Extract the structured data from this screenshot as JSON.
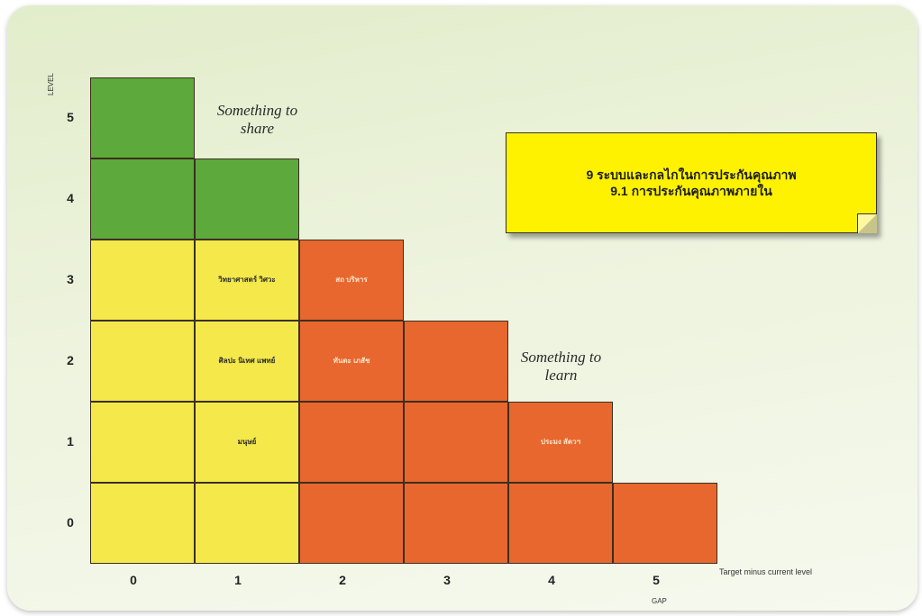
{
  "diagram": {
    "y_axis": {
      "label": "LEVEL",
      "ticks": [
        "5",
        "4",
        "3",
        "2",
        "1",
        "0"
      ]
    },
    "x_axis": {
      "label": "Target minus current level",
      "sub_label": "GAP",
      "ticks": [
        "0",
        "1",
        "2",
        "3",
        "4",
        "5"
      ]
    },
    "annotations": {
      "share": "Something to share",
      "learn": "Something to learn"
    },
    "note": {
      "line1": "9 ระบบและกลไกในการประกันคุณภาพ",
      "line2": "9.1 การประกันคุณภาพภายใน"
    },
    "colors": {
      "share": "#5da93c",
      "neutral": "#f4e84a",
      "learn": "#e8672f",
      "note": "#fff200"
    },
    "cells": [
      {
        "gap": 0,
        "level": 5,
        "zone": "green"
      },
      {
        "gap": 0,
        "level": 4,
        "zone": "green"
      },
      {
        "gap": 1,
        "level": 4,
        "zone": "green"
      },
      {
        "gap": 0,
        "level": 3,
        "zone": "yellow"
      },
      {
        "gap": 0,
        "level": 2,
        "zone": "yellow"
      },
      {
        "gap": 0,
        "level": 1,
        "zone": "yellow"
      },
      {
        "gap": 0,
        "level": 0,
        "zone": "yellow"
      },
      {
        "gap": 1,
        "level": 3,
        "zone": "yellow"
      },
      {
        "gap": 1,
        "level": 2,
        "zone": "yellow"
      },
      {
        "gap": 1,
        "level": 1,
        "zone": "yellow"
      },
      {
        "gap": 1,
        "level": 0,
        "zone": "yellow"
      },
      {
        "gap": 2,
        "level": 3,
        "zone": "orange"
      },
      {
        "gap": 2,
        "level": 2,
        "zone": "orange"
      },
      {
        "gap": 2,
        "level": 1,
        "zone": "orange"
      },
      {
        "gap": 2,
        "level": 0,
        "zone": "orange"
      },
      {
        "gap": 3,
        "level": 2,
        "zone": "orange"
      },
      {
        "gap": 3,
        "level": 1,
        "zone": "orange"
      },
      {
        "gap": 3,
        "level": 0,
        "zone": "orange"
      },
      {
        "gap": 4,
        "level": 1,
        "zone": "orange"
      },
      {
        "gap": 4,
        "level": 0,
        "zone": "orange"
      },
      {
        "gap": 5,
        "level": 0,
        "zone": "orange"
      }
    ],
    "cell_labels": [
      {
        "gap": 1,
        "level": 3,
        "text": "วิทยาศาสตร์ วิศวะ",
        "tone": "dark"
      },
      {
        "gap": 1,
        "level": 2,
        "text": "ศิลปะ นิเทศ แพทย์",
        "tone": "dark"
      },
      {
        "gap": 1,
        "level": 1,
        "text": "มนุษย์",
        "tone": "dark"
      },
      {
        "gap": 2,
        "level": 3,
        "text": "สถ บริหาร",
        "tone": "light"
      },
      {
        "gap": 2,
        "level": 2,
        "text": "ทันตะ เภสัช",
        "tone": "light"
      },
      {
        "gap": 4,
        "level": 1,
        "text": "ประมง สัตวฯ",
        "tone": "light"
      }
    ]
  }
}
